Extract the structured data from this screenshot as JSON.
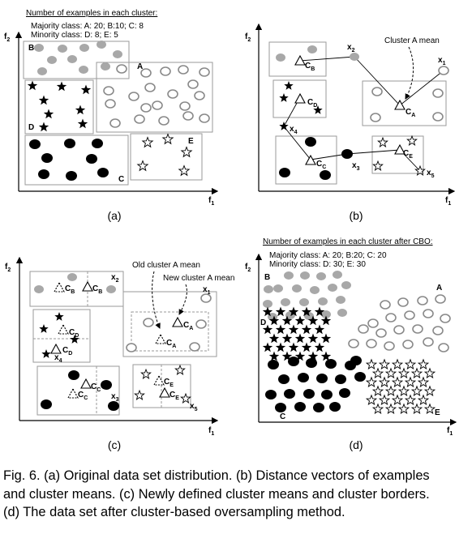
{
  "panels": {
    "a": {
      "label": "(a)",
      "heading": "Number of examples in each cluster:",
      "majority_line": "Majority class: A: 20; B:10; C: 8",
      "minority_line": "Minority class: D: 8; E: 5",
      "axis_x": "f",
      "axis_x_sub": "1",
      "axis_y": "f",
      "axis_y_sub": "2",
      "cluster_labels": {
        "A": "A",
        "B": "B",
        "C": "C",
        "D": "D",
        "E": "E"
      }
    },
    "b": {
      "label": "(b)",
      "axis_x": "f",
      "axis_x_sub": "1",
      "axis_y": "f",
      "axis_y_sub": "2",
      "annotation": "Cluster A mean",
      "means": {
        "B": "B",
        "D": "D",
        "A": "A",
        "C": "C",
        "E": "E",
        "prefix": "C"
      },
      "points": {
        "x1": "1",
        "x2": "2",
        "x3": "3",
        "x4": "4",
        "x5": "5",
        "prefix": "x"
      }
    },
    "c": {
      "label": "(c)",
      "axis_x": "f",
      "axis_x_sub": "1",
      "axis_y": "f",
      "axis_y_sub": "2",
      "annotation_old": "Old cluster A mean",
      "annotation_new": "New cluster A mean",
      "means": {
        "B": "B",
        "D": "D",
        "A": "A",
        "C": "C",
        "E": "E",
        "prefix": "C"
      },
      "points": {
        "x1": "1",
        "x2": "2",
        "x3": "3",
        "x4": "4",
        "x5": "5",
        "prefix": "x"
      }
    },
    "d": {
      "label": "(d)",
      "heading": "Number of examples in each cluster after CBO:",
      "majority_line": "Majority class: A: 20; B:20; C: 20",
      "minority_line": "Minority class: D: 30; E: 30",
      "axis_x": "f",
      "axis_x_sub": "1",
      "axis_y": "f",
      "axis_y_sub": "2",
      "cluster_labels": {
        "A": "A",
        "B": "B",
        "C": "C",
        "D": "D",
        "E": "E"
      }
    }
  },
  "caption": {
    "line1": "Fig. 6. (a) Original data set distribution. (b) Distance vectors of examples",
    "line2": "and cluster means. (c) Newly defined cluster means and cluster borders.",
    "line3": "(d) The data set after cluster-based oversampling method."
  },
  "colors": {
    "majority_gray": "#a8a8a8",
    "majority_c": "#000000",
    "outline_a": "#8a8a8a",
    "box_border": "#9a9a9a"
  }
}
